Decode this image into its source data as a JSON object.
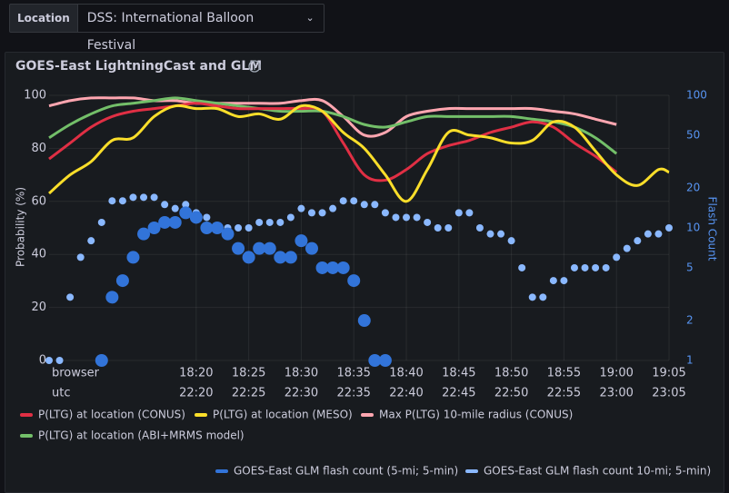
{
  "location": {
    "label": "Location",
    "value": "DSS: International Balloon Festival"
  },
  "chart_data": {
    "type": "line",
    "title": "GOES-East LightningCast and GLM",
    "ylabel": "Probability (%)",
    "y2label": "Flash Count",
    "ylim": [
      0,
      100
    ],
    "yticks": [
      0,
      20,
      40,
      60,
      80,
      100
    ],
    "y2lim": [
      1,
      100
    ],
    "y2ticks": [
      1,
      2,
      5,
      10,
      20,
      50,
      100
    ],
    "y2log": true,
    "xlim": [
      "18:06",
      "19:05"
    ],
    "xticks": [
      "18:20",
      "18:25",
      "18:30",
      "18:35",
      "18:40",
      "18:45",
      "18:50",
      "18:55",
      "19:00",
      "19:05"
    ],
    "xticks_row_label": "browser",
    "xticks2": [
      "22:20",
      "22:25",
      "22:30",
      "22:35",
      "22:40",
      "22:45",
      "22:50",
      "22:55",
      "23:00",
      "23:05"
    ],
    "xticks2_row_label": "utc",
    "grid": true,
    "series": [
      {
        "name": "P(LTG) at location (CONUS)",
        "color": "#e02f44",
        "type": "line",
        "x": [
          "18:06",
          "18:08",
          "18:10",
          "18:12",
          "18:14",
          "18:16",
          "18:18",
          "18:20",
          "18:22",
          "18:24",
          "18:26",
          "18:28",
          "18:30",
          "18:32",
          "18:34",
          "18:36",
          "18:38",
          "18:40",
          "18:42",
          "18:44",
          "18:46",
          "18:48",
          "18:50",
          "18:52",
          "18:54",
          "18:56",
          "18:58",
          "19:00",
          "19:02",
          "19:04",
          "19:05"
        ],
        "values": [
          76,
          82,
          88,
          92,
          94,
          95,
          96,
          97,
          96,
          95,
          95,
          95,
          95,
          94,
          82,
          70,
          68,
          72,
          78,
          81,
          83,
          86,
          88,
          90,
          88,
          82,
          77,
          71,
          null,
          null,
          null
        ]
      },
      {
        "name": "P(LTG) at location (MESO)",
        "color": "#fade2a",
        "type": "line",
        "x": [
          "18:06",
          "18:08",
          "18:10",
          "18:12",
          "18:14",
          "18:16",
          "18:18",
          "18:20",
          "18:22",
          "18:24",
          "18:26",
          "18:28",
          "18:30",
          "18:32",
          "18:34",
          "18:36",
          "18:38",
          "18:40",
          "18:42",
          "18:44",
          "18:46",
          "18:48",
          "18:50",
          "18:52",
          "18:54",
          "18:56",
          "18:58",
          "19:00",
          "19:02",
          "19:04",
          "19:05"
        ],
        "values": [
          63,
          70,
          75,
          83,
          84,
          92,
          96,
          95,
          95,
          92,
          93,
          91,
          96,
          94,
          86,
          80,
          70,
          60,
          72,
          86,
          85,
          84,
          82,
          83,
          90,
          88,
          79,
          70,
          66,
          72,
          71
        ]
      },
      {
        "name": "Max P(LTG) 10-mile radius (CONUS)",
        "color": "#ffa6b0",
        "type": "line",
        "x": [
          "18:06",
          "18:08",
          "18:10",
          "18:12",
          "18:14",
          "18:16",
          "18:18",
          "18:20",
          "18:22",
          "18:24",
          "18:26",
          "18:28",
          "18:30",
          "18:32",
          "18:34",
          "18:36",
          "18:38",
          "18:40",
          "18:42",
          "18:44",
          "18:46",
          "18:48",
          "18:50",
          "18:52",
          "18:54",
          "18:56",
          "18:58",
          "19:00",
          "19:02",
          "19:04",
          "19:05"
        ],
        "values": [
          96,
          98,
          99,
          99,
          99,
          98,
          98,
          97,
          97,
          97,
          97,
          97,
          98,
          98,
          92,
          85,
          86,
          92,
          94,
          95,
          95,
          95,
          95,
          95,
          94,
          93,
          91,
          89,
          null,
          null,
          null
        ]
      },
      {
        "name": "P(LTG) at location (ABI+MRMS model)",
        "color": "#73bf69",
        "type": "line",
        "x": [
          "18:06",
          "18:08",
          "18:10",
          "18:12",
          "18:14",
          "18:16",
          "18:18",
          "18:20",
          "18:22",
          "18:24",
          "18:26",
          "18:28",
          "18:30",
          "18:32",
          "18:34",
          "18:36",
          "18:38",
          "18:40",
          "18:42",
          "18:44",
          "18:46",
          "18:48",
          "18:50",
          "18:52",
          "18:54",
          "18:56",
          "18:58",
          "19:00",
          "19:02",
          "19:04",
          "19:05"
        ],
        "values": [
          84,
          89,
          93,
          96,
          97,
          98,
          99,
          98,
          97,
          96,
          95,
          94,
          94,
          94,
          92,
          89,
          88,
          90,
          92,
          92,
          92,
          92,
          92,
          91,
          90,
          88,
          84,
          78,
          null,
          null,
          null
        ]
      },
      {
        "name": "GOES-East GLM flash count (5-mi; 5-min)",
        "color": "#3274d9",
        "type": "scatter",
        "axis": "y2",
        "x": [
          "18:11",
          "18:12",
          "18:13",
          "18:14",
          "18:15",
          "18:16",
          "18:17",
          "18:18",
          "18:19",
          "18:20",
          "18:21",
          "18:22",
          "18:23",
          "18:24",
          "18:25",
          "18:26",
          "18:27",
          "18:28",
          "18:29",
          "18:30",
          "18:31",
          "18:32",
          "18:33",
          "18:34",
          "18:35",
          "18:36",
          "18:37",
          "18:38"
        ],
        "values": [
          1,
          3,
          4,
          6,
          9,
          10,
          11,
          11,
          13,
          12,
          10,
          10,
          9,
          7,
          6,
          7,
          7,
          6,
          6,
          8,
          7,
          5,
          5,
          5,
          4,
          2,
          1,
          1
        ]
      },
      {
        "name": "GOES-East GLM flash count 10-mi; 5-min)",
        "color": "#8ab8ff",
        "type": "scatter",
        "axis": "y2",
        "x": [
          "18:06",
          "18:07",
          "18:08",
          "18:09",
          "18:10",
          "18:11",
          "18:12",
          "18:13",
          "18:14",
          "18:15",
          "18:16",
          "18:17",
          "18:18",
          "18:19",
          "18:20",
          "18:21",
          "18:22",
          "18:23",
          "18:24",
          "18:25",
          "18:26",
          "18:27",
          "18:28",
          "18:29",
          "18:30",
          "18:31",
          "18:32",
          "18:33",
          "18:34",
          "18:35",
          "18:36",
          "18:37",
          "18:38",
          "18:39",
          "18:40",
          "18:41",
          "18:42",
          "18:43",
          "18:44",
          "18:45",
          "18:46",
          "18:47",
          "18:48",
          "18:49",
          "18:50",
          "18:51",
          "18:52",
          "18:53",
          "18:54",
          "18:55",
          "18:56",
          "18:57",
          "18:58",
          "18:59",
          "19:00",
          "19:01",
          "19:02",
          "19:03",
          "19:04",
          "19:05"
        ],
        "values": [
          1,
          1,
          3,
          6,
          8,
          11,
          16,
          16,
          17,
          17,
          17,
          15,
          14,
          15,
          13,
          12,
          10,
          10,
          10,
          10,
          11,
          11,
          11,
          12,
          14,
          13,
          13,
          14,
          16,
          16,
          15,
          15,
          13,
          12,
          12,
          12,
          11,
          10,
          10,
          13,
          13,
          10,
          9,
          9,
          8,
          5,
          3,
          3,
          4,
          4,
          5,
          5,
          5,
          5,
          6,
          7,
          8,
          9,
          9,
          10
        ]
      }
    ]
  }
}
